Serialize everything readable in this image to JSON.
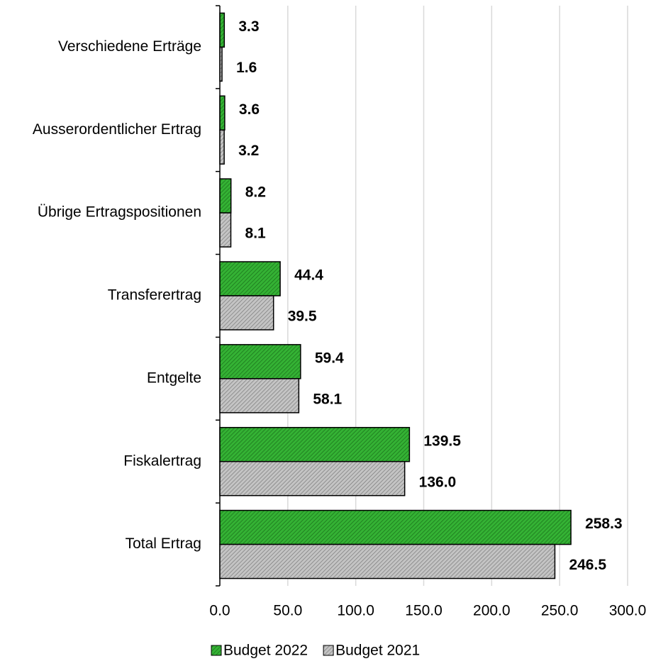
{
  "chart_data": {
    "type": "hbar",
    "categories": [
      "Verschiedene Erträge",
      "Ausserordentlicher Ertrag",
      "Übrige Ertragspositionen",
      "Transferertrag",
      "Entgelte",
      "Fiskalertrag",
      "Total Ertrag"
    ],
    "series": [
      {
        "name": "Budget 2022",
        "color": "#34b234",
        "values": [
          3.3,
          3.6,
          8.2,
          44.4,
          59.4,
          139.5,
          258.3
        ],
        "value_labels": [
          "3.3",
          "3.6",
          "8.2",
          "44.4",
          "59.4",
          "139.5",
          "258.3"
        ]
      },
      {
        "name": "Budget 2021",
        "color": "#c4c4c4",
        "values": [
          1.6,
          3.2,
          8.1,
          39.5,
          58.1,
          136.0,
          246.5
        ],
        "value_labels": [
          "1.6",
          "3.2",
          "8.1",
          "39.5",
          "58.1",
          "136.0",
          "246.5"
        ]
      }
    ],
    "xlim": [
      0,
      300
    ],
    "xticks": [
      {
        "value": 0,
        "label": "0.0"
      },
      {
        "value": 50,
        "label": "50.0"
      },
      {
        "value": 100,
        "label": "100.0"
      },
      {
        "value": 150,
        "label": "150.0"
      },
      {
        "value": 200,
        "label": "200.0"
      },
      {
        "value": 250,
        "label": "250.0"
      },
      {
        "value": 300,
        "label": "300.0"
      }
    ],
    "grid": true,
    "legend": "bottom"
  }
}
